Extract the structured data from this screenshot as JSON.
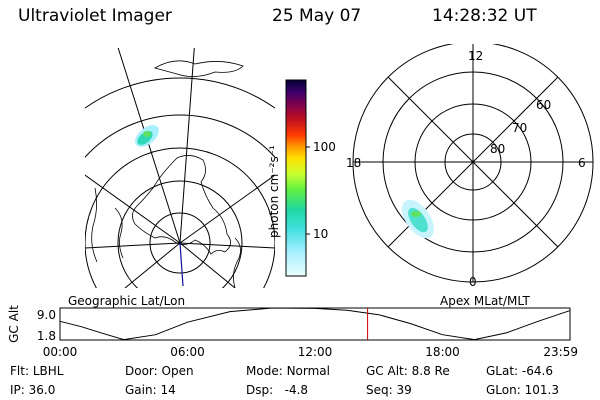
{
  "header": {
    "instrument": "Ultraviolet Imager",
    "date": "25 May 07",
    "time": "14:28:32 UT"
  },
  "colorbar": {
    "label": "photon cm⁻²s⁻¹",
    "ticks": [
      "100",
      "10"
    ],
    "colors": [
      "#000030",
      "#3a006a",
      "#7a0050",
      "#a00020",
      "#d01010",
      "#ff2a00",
      "#ff7a00",
      "#ffb000",
      "#ffe000",
      "#e8ff20",
      "#a8ff30",
      "#50f040",
      "#20d8a0",
      "#30d8d8",
      "#60e8ff",
      "#a8f0ff",
      "#e0ffff"
    ]
  },
  "panels": {
    "left_label": "Geographic Lat/Lon",
    "right_label": "Apex MLat/MLT",
    "polar_labels": {
      "top": "12",
      "bottom": "0",
      "left": "18",
      "right": "6"
    },
    "lat_labels": [
      "60",
      "70",
      "80"
    ]
  },
  "chart_data": {
    "type": "line",
    "title": "",
    "ylabel": "GC Alt",
    "xlabel": "",
    "x_ticks": [
      "00:00",
      "06:00",
      "12:00",
      "18:00",
      "23:59"
    ],
    "y_ticks": [
      "9.0",
      "1.8"
    ],
    "ylim": [
      1.8,
      9.0
    ],
    "xlim_hours": [
      0,
      24
    ],
    "series": [
      {
        "x": [
          0,
          1,
          2,
          3,
          4.5,
          6,
          8,
          10,
          12,
          13.5,
          15,
          16.5,
          18,
          19.5,
          21,
          22.5,
          23.98
        ],
        "values": [
          6.0,
          4.8,
          3.3,
          1.9,
          3.0,
          5.8,
          8.2,
          9.0,
          8.9,
          8.5,
          7.5,
          5.5,
          3.0,
          1.9,
          3.4,
          6.0,
          8.4
        ]
      }
    ],
    "current_time_hours": 14.475,
    "current_time_color": "#cc0000"
  },
  "footer": {
    "filter_label": "Flt:",
    "filter": "LBHL",
    "ip_label": "IP:",
    "ip": "36.0",
    "door_label": "Door:",
    "door": "Open",
    "gain_label": "Gain:",
    "gain": "14",
    "mode_label": "Mode:",
    "mode": "Normal",
    "dsp_label": "Dsp:",
    "dsp": "-4.8",
    "gcalt_label": "GC Alt:",
    "gcalt": "8.8 Re",
    "seq_label": "Seq:",
    "seq": "39",
    "glat_label": "GLat:",
    "glat": "-64.6",
    "glon_label": "GLon:",
    "glon": "101.3"
  }
}
